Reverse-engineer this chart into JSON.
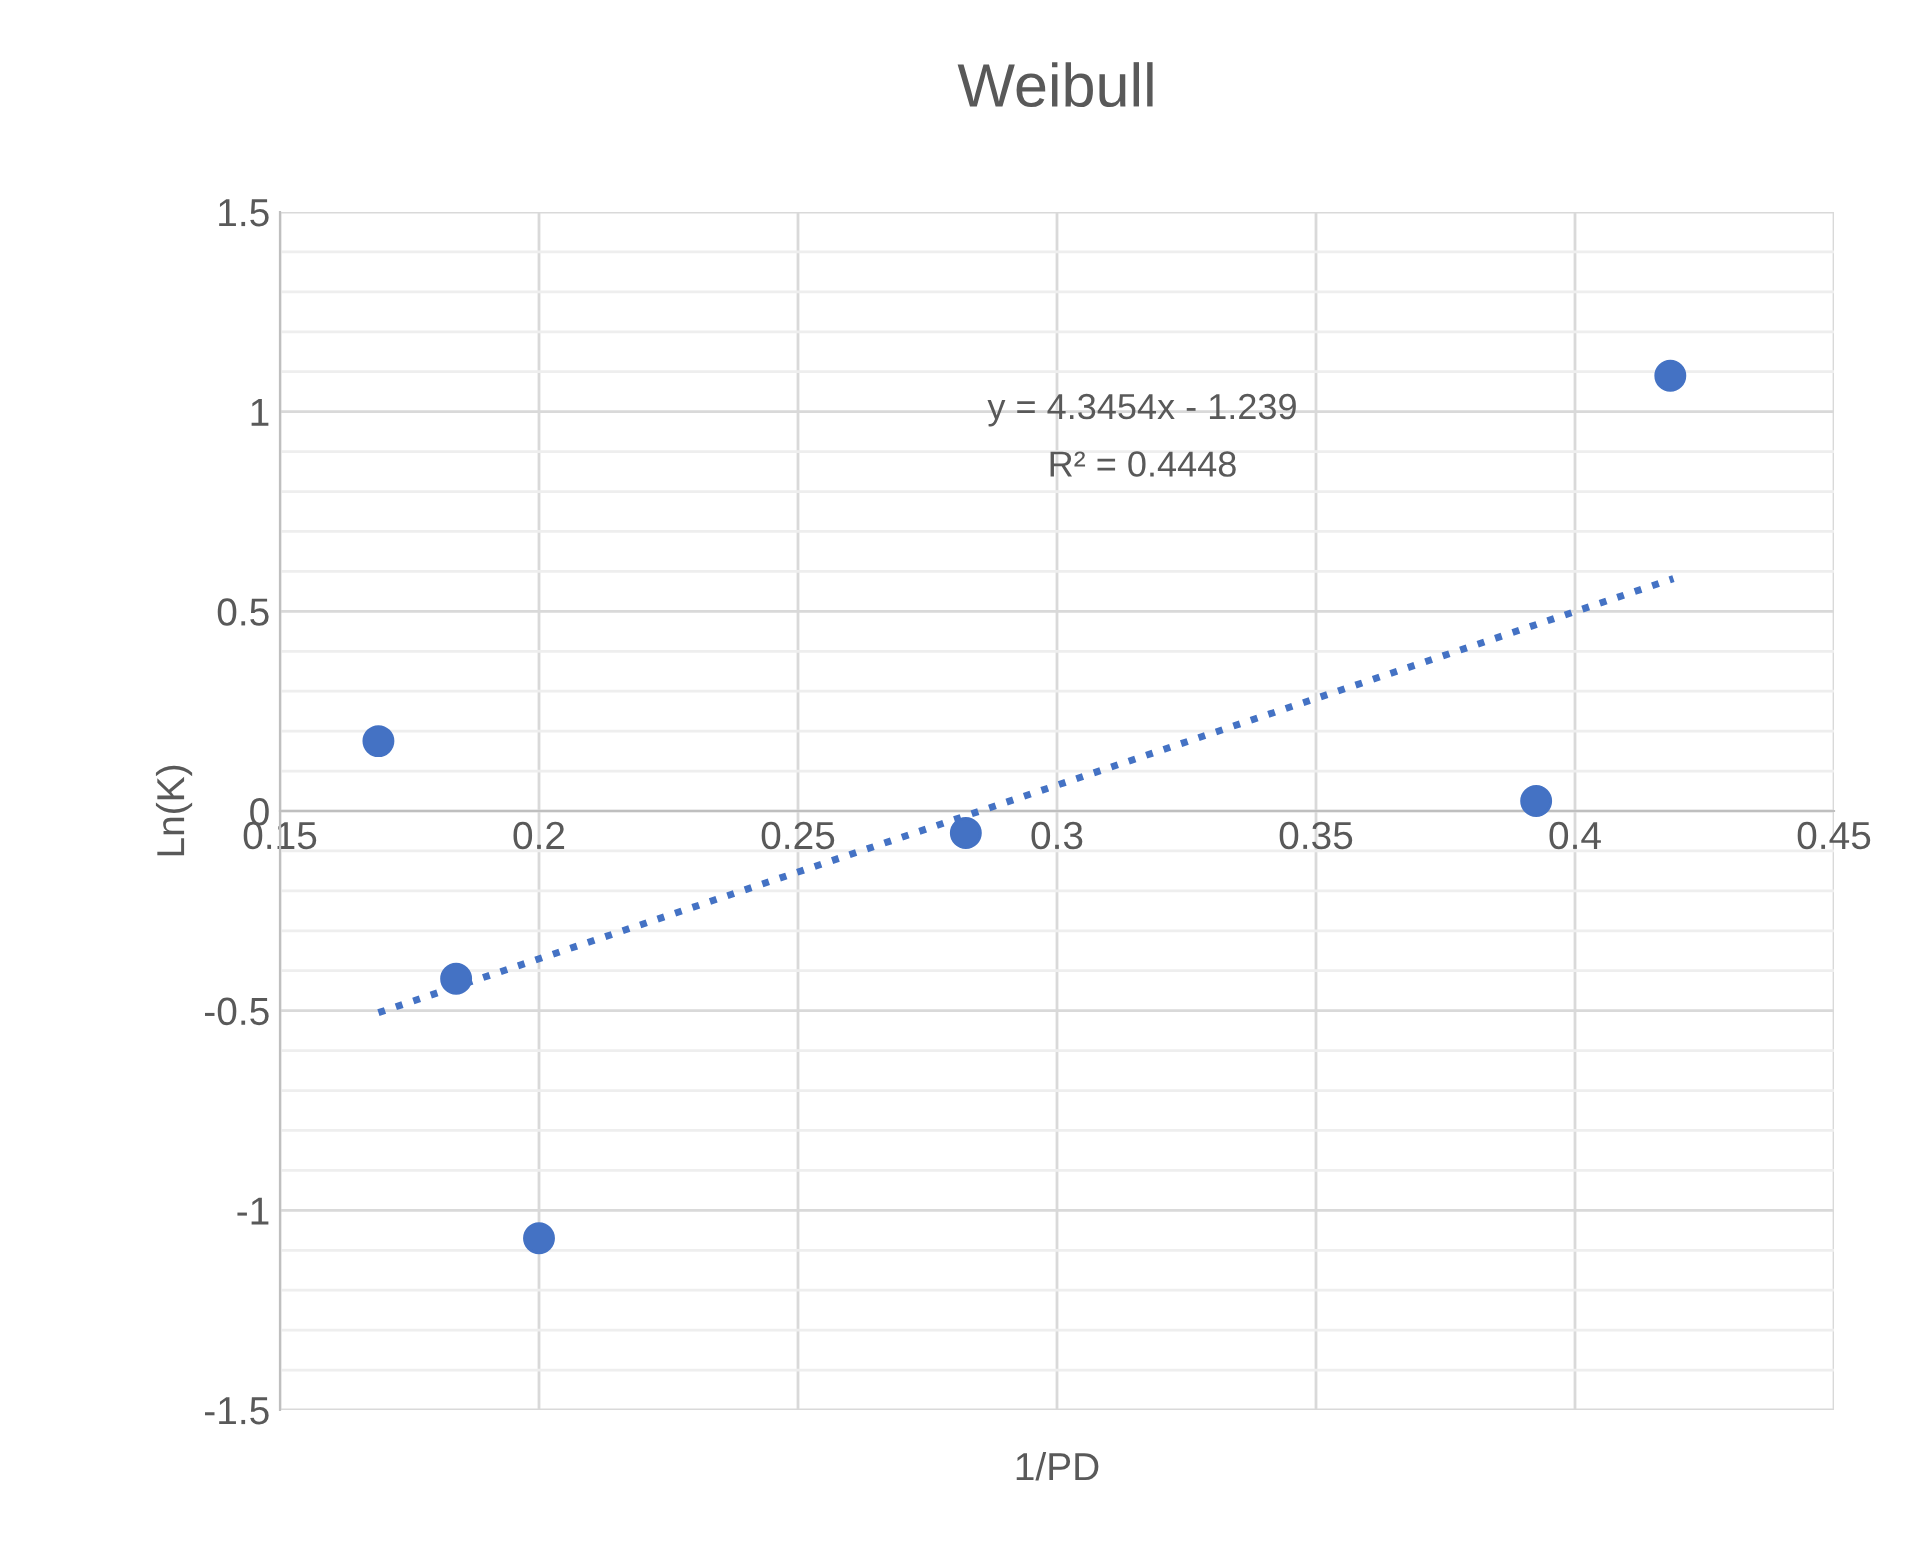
{
  "chart_data": {
    "type": "scatter",
    "title": "Weibull",
    "xlabel": "1/PD",
    "ylabel": "Ln(K)",
    "x": [
      0.169,
      0.184,
      0.2,
      0.2824,
      0.3925,
      0.4184
    ],
    "series": [
      {
        "color": "#4472c4",
        "values": [
          0.175,
          -0.42,
          -1.07,
          -0.055,
          0.025,
          1.09
        ],
        "marker": "circle"
      },
      {
        "type": "line",
        "color": "#4472c4",
        "x": [
          0.169,
          0.419
        ],
        "values": [
          -0.505,
          0.582
        ],
        "line_style": "dotted",
        "marker": "none"
      }
    ],
    "annotations": [
      "y = 4.3454x - 1.239",
      "R² = 0.4448"
    ],
    "xlim": [
      0.15,
      0.45
    ],
    "xticks": [
      0.15,
      0.2,
      0.25,
      0.3,
      0.35,
      0.4,
      0.45
    ],
    "ylim": [
      -1.5,
      1.5
    ],
    "yticks": [
      -1.5,
      {
        "value": -1.4,
        "label": null
      },
      {
        "value": -1.3,
        "label": null
      },
      {
        "value": -1.2,
        "label": null
      },
      {
        "value": -1.1,
        "label": null
      },
      -1,
      {
        "value": -0.9,
        "label": null
      },
      {
        "value": -0.8,
        "label": null
      },
      {
        "value": -0.7,
        "label": null
      },
      {
        "value": -0.6,
        "label": null
      },
      -0.5,
      {
        "value": -0.4,
        "label": null
      },
      {
        "value": -0.3,
        "label": null
      },
      {
        "value": -0.2,
        "label": null
      },
      {
        "value": -0.1,
        "label": null
      },
      0,
      {
        "value": 0.1,
        "label": null
      },
      {
        "value": 0.2,
        "label": null
      },
      {
        "value": 0.3,
        "label": null
      },
      {
        "value": 0.4,
        "label": null
      },
      0.5,
      {
        "value": 0.6,
        "label": null
      },
      {
        "value": 0.7,
        "label": null
      },
      {
        "value": 0.8,
        "label": null
      },
      {
        "value": 0.9,
        "label": null
      },
      1,
      {
        "value": 1.1,
        "label": null
      },
      {
        "value": 1.2,
        "label": null
      },
      {
        "value": 1.3,
        "label": null
      },
      {
        "value": 1.4,
        "label": null
      },
      1.5
    ],
    "grid": true
  }
}
